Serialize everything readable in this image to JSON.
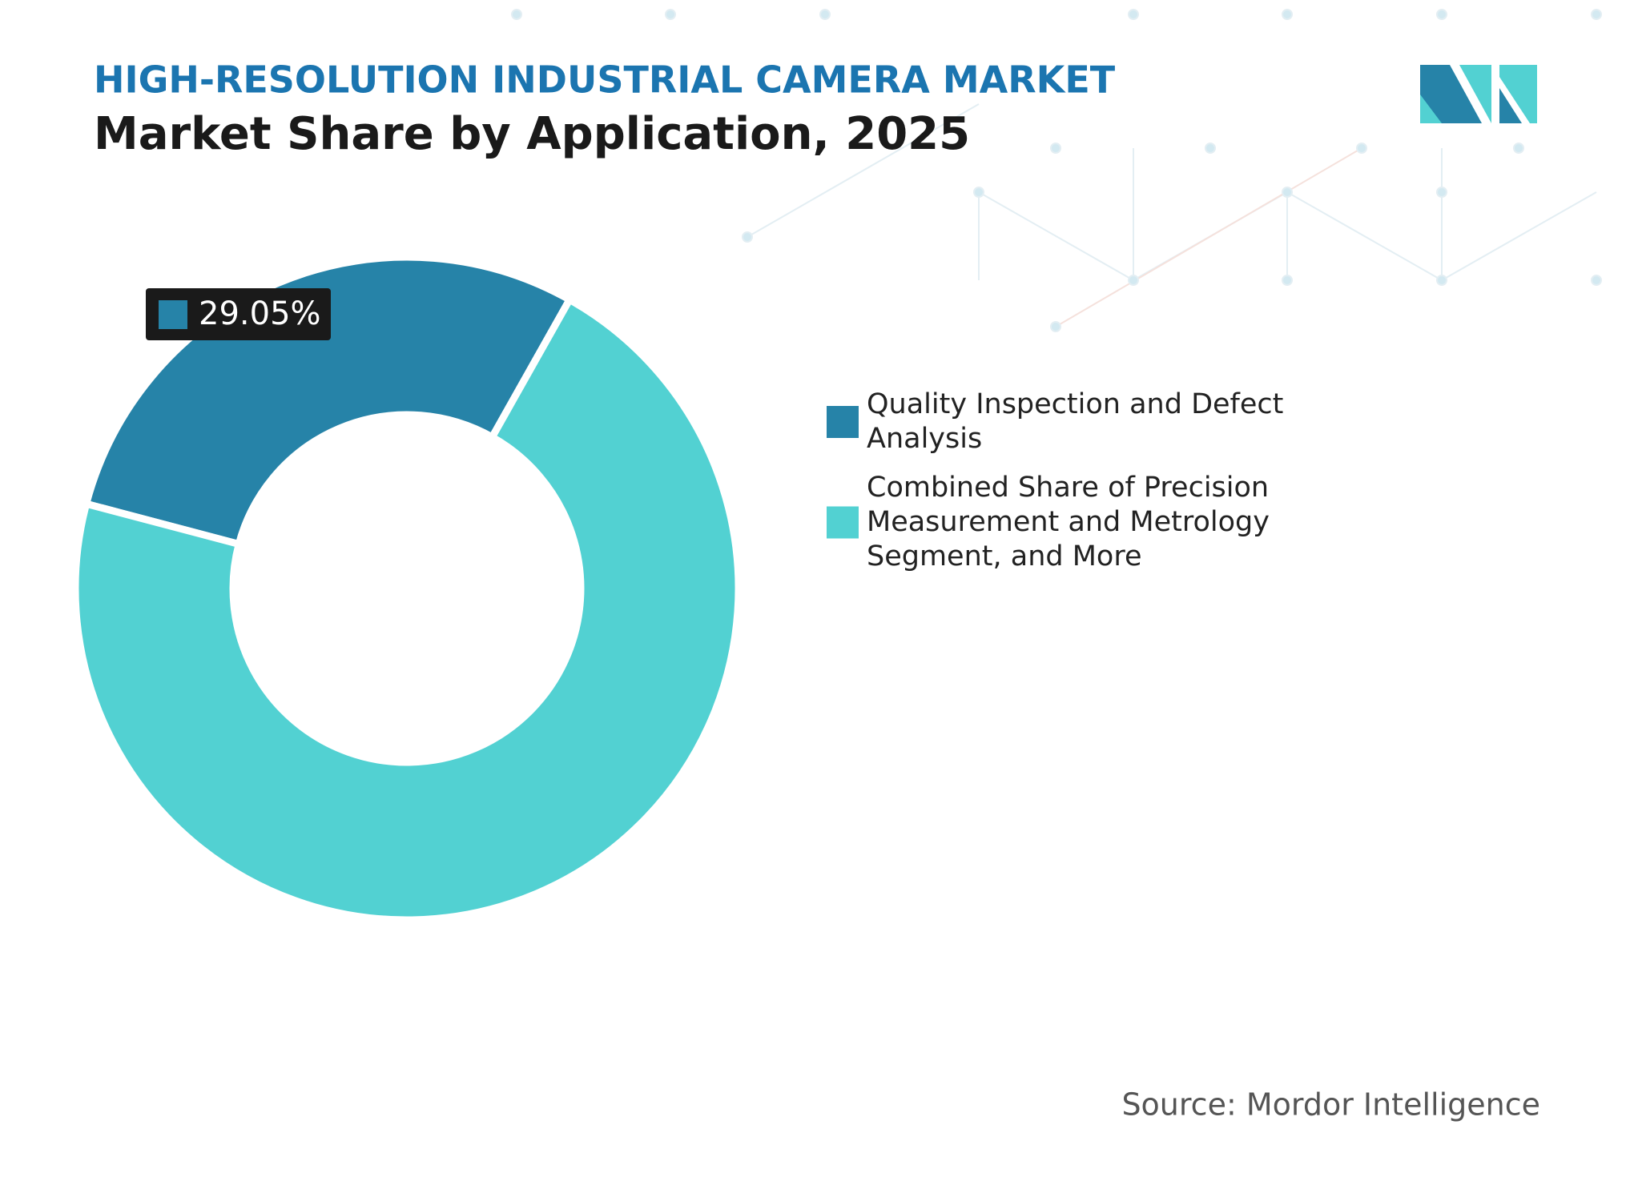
{
  "chart_data": {
    "type": "donut",
    "title": "HIGH-RESOLUTION INDUSTRIAL CAMERA MARKET",
    "subtitle": "Market Share by Application, 2025",
    "categories": [
      "Quality Inspection and Defect Analysis",
      "Combined Share of Precision Measurement and Metrology Segment, and More"
    ],
    "values": [
      29.05,
      70.95
    ],
    "value_labels": [
      "29.05%",
      null
    ],
    "colors": [
      "#2683a8",
      "#52d1d2"
    ],
    "legend": "right",
    "source": "Source: Mordor Intelligence"
  }
}
